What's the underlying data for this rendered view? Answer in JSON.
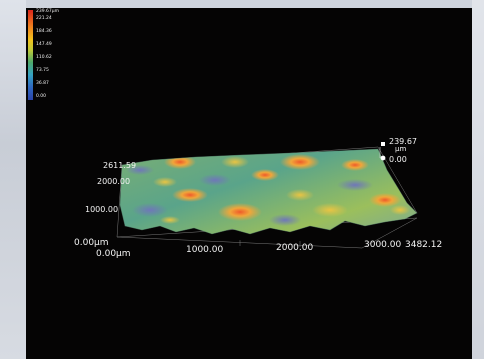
{
  "window": {
    "colors": {
      "background": "#050404",
      "frame": "#cfd4dd"
    }
  },
  "legend": {
    "title": "239.67µm",
    "ticks": [
      "221.24",
      "184.36",
      "147.49",
      "110.62",
      "73.75",
      "36.87",
      "0.00"
    ]
  },
  "axes": {
    "z_top_value": "239.67",
    "z_unit": "µm",
    "z_zero": "0.00",
    "y_max_label": "2611.59",
    "y_ticks": [
      "2000.00",
      "1000.00"
    ],
    "origin_labels": [
      "0.00µm",
      "0.00µm"
    ],
    "x_ticks": [
      "1000.00",
      "2000.00",
      "3000.00"
    ],
    "x_max_label": "3482.12"
  },
  "icons": [
    "zmax-marker-icon",
    "zmin-marker-icon"
  ]
}
